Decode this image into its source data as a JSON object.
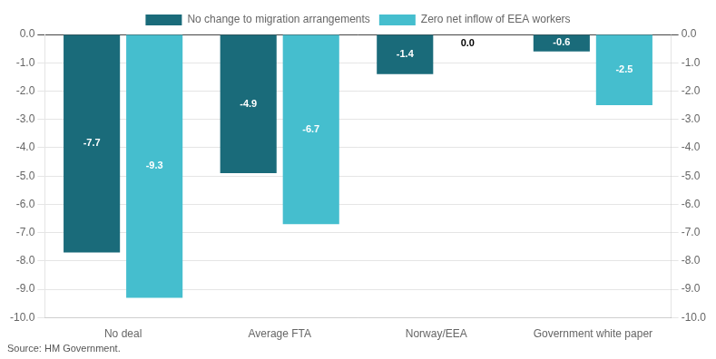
{
  "chart_data": {
    "type": "bar",
    "categories": [
      "No deal",
      "Average FTA",
      "Norway/EEA",
      "Government white paper"
    ],
    "series": [
      {
        "name": "No change to migration arrangements",
        "color": "#1a6b7a",
        "values": [
          -7.7,
          -4.9,
          -1.4,
          -0.6
        ]
      },
      {
        "name": "Zero net inflow of EEA workers",
        "color": "#45bece",
        "values": [
          -9.3,
          -6.7,
          0.0,
          -2.5
        ],
        "value_labels": [
          "-9.3",
          "-6.7",
          "0.0",
          "-2.5"
        ]
      }
    ],
    "ylim": [
      -10.0,
      0.0
    ],
    "yticks": [
      {
        "value": 0,
        "label": "0.0"
      },
      {
        "value": -1,
        "label": "-1.0"
      },
      {
        "value": -2,
        "label": "-2.0"
      },
      {
        "value": -3,
        "label": "-3.0"
      },
      {
        "value": -4,
        "label": "-4.0"
      },
      {
        "value": -5,
        "label": "-5.0"
      },
      {
        "value": -6,
        "label": "-6.0"
      },
      {
        "value": -7,
        "label": "-7.0"
      },
      {
        "value": -8,
        "label": "-8.0"
      },
      {
        "value": -9,
        "label": "-9.0"
      },
      {
        "value": -10,
        "label": "-10.0"
      }
    ],
    "y2lim": [
      -10.0,
      0.0
    ],
    "y2ticks": [
      {
        "value": 0,
        "label": "0.0"
      },
      {
        "value": -1,
        "label": "-1.0"
      },
      {
        "value": -2,
        "label": "-2.0"
      },
      {
        "value": -3,
        "label": "-3.0"
      },
      {
        "value": -4,
        "label": "-4.0"
      },
      {
        "value": -5,
        "label": "-5.0"
      },
      {
        "value": -6,
        "label": "-6.0"
      },
      {
        "value": -7,
        "label": "-7.0"
      },
      {
        "value": -8,
        "label": "-8.0"
      },
      {
        "value": -9,
        "label": "-9.0"
      },
      {
        "value": -10,
        "label": "-10.0"
      }
    ],
    "grid": true,
    "legend": "top",
    "data_labels": true,
    "annotations": [
      "Source: HM Government."
    ]
  }
}
